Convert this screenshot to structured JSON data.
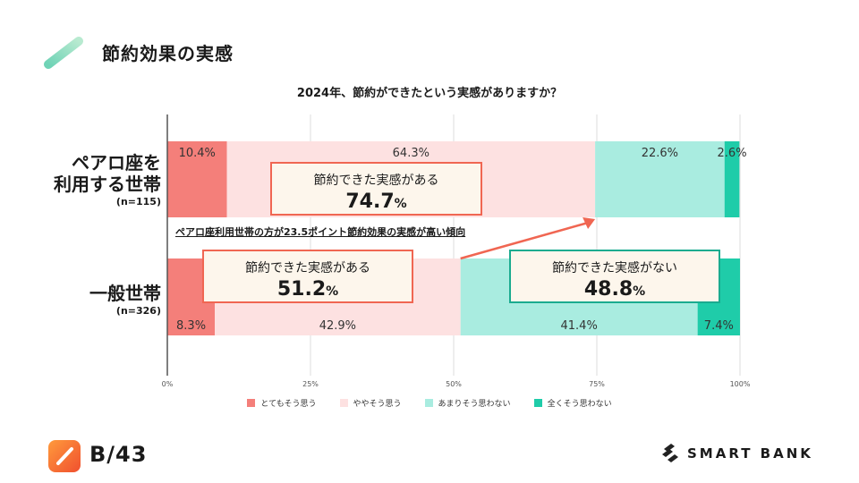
{
  "page_title": "節約効果の実感",
  "footer": {
    "brand_left": "B/43",
    "brand_right": "SMART BANK"
  },
  "callouts": [
    {
      "text": "節約できた実感がある",
      "value": "74.7",
      "unit": "%"
    },
    {
      "text": "節約できた実感がある",
      "value": "51.2",
      "unit": "%"
    },
    {
      "text": "節約できた実感がない",
      "value": "48.8",
      "unit": "%"
    }
  ],
  "annotation": "ペアロ座利用世帯の方が23.5ポイント節約効果の実感が高い傾向",
  "colors": {
    "strong_agree": "#f47f7a",
    "agree": "#fde1e1",
    "disagree": "#a9ece0",
    "strong_disagree": "#1fcca9",
    "arrow": "#f06652",
    "teal_border": "#1aab8f"
  },
  "chart_data": {
    "type": "bar",
    "orientation": "horizontal-stacked",
    "title": "2024年、節約ができたという実感がありますか？",
    "categories": [
      {
        "label_line1": "ペアロ座を",
        "label_line2": "利用する世帯",
        "n": "(n=115)"
      },
      {
        "label_line1": "一般世帯",
        "label_line2": "",
        "n": "(n=326)"
      }
    ],
    "series": [
      {
        "name": "とてもそう思う",
        "values": [
          10.4,
          8.3
        ],
        "labels": [
          "10.4%",
          "8.3%"
        ]
      },
      {
        "name": "ややそう思う",
        "values": [
          64.3,
          42.9
        ],
        "labels": [
          "64.3%",
          "42.9%"
        ]
      },
      {
        "name": "あまりそう思わない",
        "values": [
          22.6,
          41.4
        ],
        "labels": [
          "22.6%",
          "41.4%"
        ]
      },
      {
        "name": "全くそう思わない",
        "values": [
          2.6,
          7.4
        ],
        "labels": [
          "2.6%",
          "7.4%"
        ]
      }
    ],
    "xlim": [
      0,
      100
    ],
    "x_ticks": [
      "0%",
      "25%",
      "50%",
      "75%",
      "100%"
    ],
    "grid": true,
    "legend": "bottom"
  }
}
